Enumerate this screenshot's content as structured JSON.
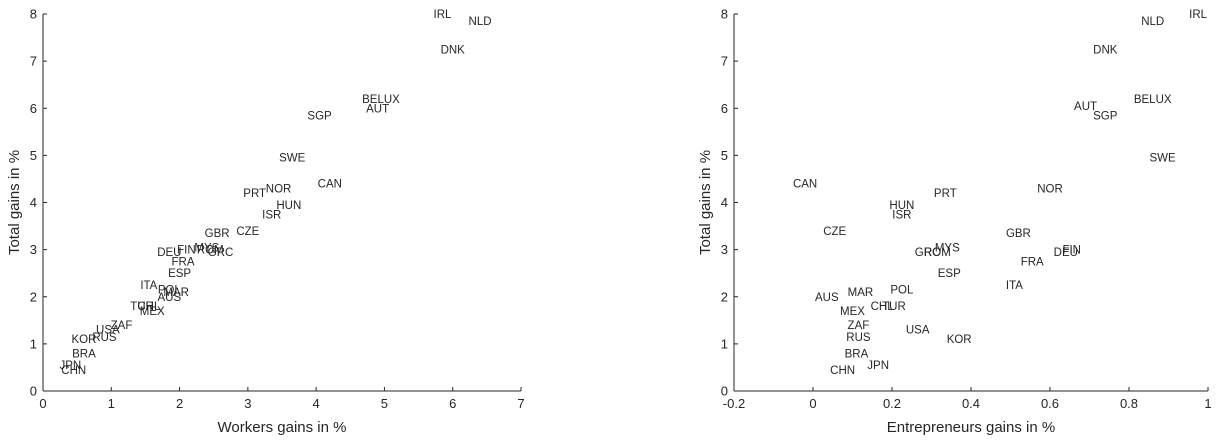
{
  "chart_data": [
    {
      "type": "scatter",
      "xlabel": "Workers gains in %",
      "ylabel": "Total gains in %",
      "xlim": [
        0,
        7
      ],
      "ylim": [
        0,
        8
      ],
      "xticks": [
        0,
        1,
        2,
        3,
        4,
        5,
        6,
        7
      ],
      "yticks": [
        0,
        1,
        2,
        3,
        4,
        5,
        6,
        7,
        8
      ],
      "marker": "text-labels",
      "grid": false,
      "points": [
        {
          "label": "IRL",
          "x": 5.85,
          "y": 8.0
        },
        {
          "label": "NLD",
          "x": 6.4,
          "y": 7.85
        },
        {
          "label": "DNK",
          "x": 6.0,
          "y": 7.25
        },
        {
          "label": "BELUX",
          "x": 4.95,
          "y": 6.2
        },
        {
          "label": "AUT",
          "x": 4.9,
          "y": 6.0
        },
        {
          "label": "SGP",
          "x": 4.05,
          "y": 5.85
        },
        {
          "label": "SWE",
          "x": 3.65,
          "y": 4.95
        },
        {
          "label": "CAN",
          "x": 4.2,
          "y": 4.4
        },
        {
          "label": "NOR",
          "x": 3.45,
          "y": 4.3
        },
        {
          "label": "PRT",
          "x": 3.1,
          "y": 4.2
        },
        {
          "label": "HUN",
          "x": 3.6,
          "y": 3.95
        },
        {
          "label": "ISR",
          "x": 3.35,
          "y": 3.75
        },
        {
          "label": "CZE",
          "x": 3.0,
          "y": 3.4
        },
        {
          "label": "GBR",
          "x": 2.55,
          "y": 3.35
        },
        {
          "label": "MYS",
          "x": 2.4,
          "y": 3.05
        },
        {
          "label": "FIN",
          "x": 2.1,
          "y": 3.0
        },
        {
          "label": "DEU",
          "x": 1.85,
          "y": 2.95
        },
        {
          "label": "ROM",
          "x": 2.45,
          "y": 3.0
        },
        {
          "label": "GRC",
          "x": 2.6,
          "y": 2.95
        },
        {
          "label": "FRA",
          "x": 2.05,
          "y": 2.75
        },
        {
          "label": "ESP",
          "x": 2.0,
          "y": 2.5
        },
        {
          "label": "ITA",
          "x": 1.55,
          "y": 2.25
        },
        {
          "label": "POL",
          "x": 1.85,
          "y": 2.15
        },
        {
          "label": "MAR",
          "x": 1.95,
          "y": 2.1
        },
        {
          "label": "AUS",
          "x": 1.85,
          "y": 2.0
        },
        {
          "label": "TUR",
          "x": 1.45,
          "y": 1.8
        },
        {
          "label": "CHL",
          "x": 1.55,
          "y": 1.8
        },
        {
          "label": "MEX",
          "x": 1.6,
          "y": 1.7
        },
        {
          "label": "ZAF",
          "x": 1.15,
          "y": 1.4
        },
        {
          "label": "USA",
          "x": 0.95,
          "y": 1.3
        },
        {
          "label": "KOR",
          "x": 0.6,
          "y": 1.1
        },
        {
          "label": "RUS",
          "x": 0.9,
          "y": 1.15
        },
        {
          "label": "BRA",
          "x": 0.6,
          "y": 0.8
        },
        {
          "label": "JPN",
          "x": 0.4,
          "y": 0.55
        },
        {
          "label": "CHN",
          "x": 0.45,
          "y": 0.45
        }
      ]
    },
    {
      "type": "scatter",
      "xlabel": "Entrepreneurs gains in %",
      "ylabel": "Total gains in %",
      "xlim": [
        -0.2,
        1.0
      ],
      "ylim": [
        0,
        8
      ],
      "xticks": [
        -0.2,
        0,
        0.2,
        0.4,
        0.6,
        0.8,
        1
      ],
      "xtick_labels": [
        "-0.2",
        "0",
        "0.2",
        "0.4",
        "0.6",
        "0.8",
        "1"
      ],
      "yticks": [
        0,
        1,
        2,
        3,
        4,
        5,
        6,
        7,
        8
      ],
      "marker": "text-labels",
      "grid": false,
      "points": [
        {
          "label": "IRL",
          "x": 0.975,
          "y": 8.0
        },
        {
          "label": "NLD",
          "x": 0.86,
          "y": 7.85
        },
        {
          "label": "DNK",
          "x": 0.74,
          "y": 7.25
        },
        {
          "label": "BELUX",
          "x": 0.86,
          "y": 6.2
        },
        {
          "label": "AUT",
          "x": 0.69,
          "y": 6.05
        },
        {
          "label": "SGP",
          "x": 0.74,
          "y": 5.85
        },
        {
          "label": "SWE",
          "x": 0.885,
          "y": 4.95
        },
        {
          "label": "CAN",
          "x": -0.02,
          "y": 4.4
        },
        {
          "label": "NOR",
          "x": 0.6,
          "y": 4.3
        },
        {
          "label": "PRT",
          "x": 0.335,
          "y": 4.2
        },
        {
          "label": "HUN",
          "x": 0.225,
          "y": 3.95
        },
        {
          "label": "ISR",
          "x": 0.225,
          "y": 3.75
        },
        {
          "label": "CZE",
          "x": 0.055,
          "y": 3.4
        },
        {
          "label": "GBR",
          "x": 0.52,
          "y": 3.35
        },
        {
          "label": "FIN",
          "x": 0.655,
          "y": 3.0
        },
        {
          "label": "DEU",
          "x": 0.64,
          "y": 2.95
        },
        {
          "label": "MYS",
          "x": 0.34,
          "y": 3.05
        },
        {
          "label": "GRC",
          "x": 0.29,
          "y": 2.95
        },
        {
          "label": "ROM",
          "x": 0.315,
          "y": 2.95
        },
        {
          "label": "FRA",
          "x": 0.555,
          "y": 2.75
        },
        {
          "label": "ESP",
          "x": 0.345,
          "y": 2.5
        },
        {
          "label": "ITA",
          "x": 0.51,
          "y": 2.25
        },
        {
          "label": "POL",
          "x": 0.225,
          "y": 2.15
        },
        {
          "label": "MAR",
          "x": 0.12,
          "y": 2.1
        },
        {
          "label": "AUS",
          "x": 0.035,
          "y": 2.0
        },
        {
          "label": "CHL",
          "x": 0.175,
          "y": 1.8
        },
        {
          "label": "TUR",
          "x": 0.205,
          "y": 1.8
        },
        {
          "label": "MEX",
          "x": 0.1,
          "y": 1.7
        },
        {
          "label": "ZAF",
          "x": 0.115,
          "y": 1.4
        },
        {
          "label": "USA",
          "x": 0.265,
          "y": 1.3
        },
        {
          "label": "RUS",
          "x": 0.115,
          "y": 1.15
        },
        {
          "label": "KOR",
          "x": 0.37,
          "y": 1.1
        },
        {
          "label": "BRA",
          "x": 0.11,
          "y": 0.8
        },
        {
          "label": "JPN",
          "x": 0.165,
          "y": 0.55
        },
        {
          "label": "CHN",
          "x": 0.075,
          "y": 0.45
        }
      ]
    }
  ],
  "colors": {
    "axis": "#262626",
    "text": "#262626",
    "background": "#ffffff"
  }
}
